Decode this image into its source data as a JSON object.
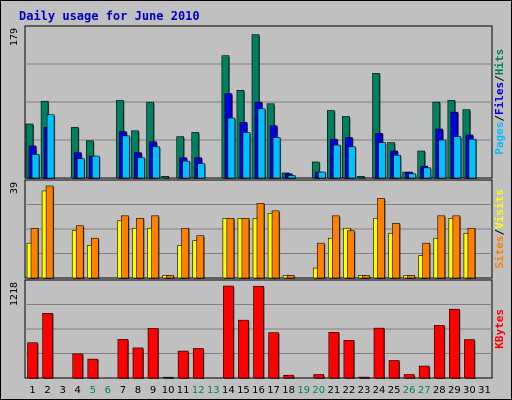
{
  "title": "Daily usage for June 2010",
  "colors": {
    "background": "#c0c0c0",
    "grid": "#808080",
    "title": "#0000c0",
    "hits": "#008060",
    "files": "#0000e0",
    "pages": "#00c0ff",
    "visits": "#ffff00",
    "sites": "#ff8000",
    "kbytes": "#ff0000",
    "weekday_label": "#000000",
    "weekend_label": "#008060"
  },
  "chart_data": {
    "type": "bar",
    "categories": [
      "1",
      "2",
      "3",
      "4",
      "5",
      "6",
      "7",
      "8",
      "9",
      "10",
      "11",
      "12",
      "13",
      "14",
      "15",
      "16",
      "17",
      "18",
      "19",
      "20",
      "21",
      "22",
      "23",
      "24",
      "25",
      "26",
      "27",
      "28",
      "29",
      "30",
      "31"
    ],
    "weekend_days": [
      "5",
      "6",
      "12",
      "13",
      "19",
      "20",
      "26",
      "27"
    ],
    "panels": [
      {
        "id": "top",
        "max_label": "179",
        "ymax": 179,
        "legend": [
          "Pages",
          "/",
          "Files",
          "/",
          "Hits"
        ],
        "series": [
          {
            "name": "Hits",
            "values": [
              64,
              91,
              0,
              60,
              44,
              0,
              92,
              56,
              90,
              2,
              49,
              54,
              0,
              145,
              104,
              170,
              88,
              6,
              0,
              19,
              80,
              73,
              2,
              124,
              42,
              7,
              32,
              90,
              92,
              81,
              0
            ]
          },
          {
            "name": "Files",
            "values": [
              38,
              60,
              0,
              30,
              26,
              0,
              55,
              30,
              43,
              0,
              24,
              24,
              0,
              100,
              66,
              90,
              62,
              5,
              0,
              7,
              46,
              48,
              0,
              53,
              32,
              7,
              14,
              58,
              78,
              51,
              0
            ]
          },
          {
            "name": "Pages",
            "values": [
              28,
              75,
              0,
              23,
              26,
              0,
              50,
              24,
              37,
              0,
              20,
              17,
              0,
              71,
              54,
              82,
              48,
              3,
              0,
              7,
              39,
              37,
              0,
              42,
              27,
              5,
              12,
              45,
              49,
              46,
              0
            ]
          }
        ]
      },
      {
        "id": "middle",
        "max_label": "39",
        "ymax": 39,
        "legend": [
          "Sites",
          "/",
          "Visits"
        ],
        "series": [
          {
            "name": "Visits",
            "values": [
              14,
              35,
              0,
              19,
              13,
              0,
              23,
              20,
              20,
              1,
              13,
              15,
              0,
              24,
              24,
              24,
              26,
              1,
              0,
              4,
              16,
              20,
              1,
              24,
              18,
              1,
              9,
              16,
              24,
              18,
              0
            ]
          },
          {
            "name": "Sites",
            "values": [
              20,
              37,
              0,
              21,
              16,
              0,
              25,
              24,
              25,
              1,
              20,
              17,
              0,
              24,
              24,
              30,
              27,
              1,
              0,
              14,
              25,
              19,
              1,
              32,
              22,
              1,
              14,
              25,
              25,
              20,
              0
            ]
          }
        ]
      },
      {
        "id": "bottom",
        "max_label": "1218",
        "ymax": 1218,
        "legend": [
          "KBytes"
        ],
        "series": [
          {
            "name": "KBytes",
            "values": [
              443,
              812,
              0,
              303,
              237,
              0,
              484,
              378,
              623,
              10,
              338,
              371,
              0,
              1155,
              726,
              1152,
              569,
              35,
              0,
              44,
              574,
              473,
              11,
              626,
              220,
              44,
              150,
              660,
              864,
              483,
              0
            ]
          }
        ]
      }
    ]
  }
}
